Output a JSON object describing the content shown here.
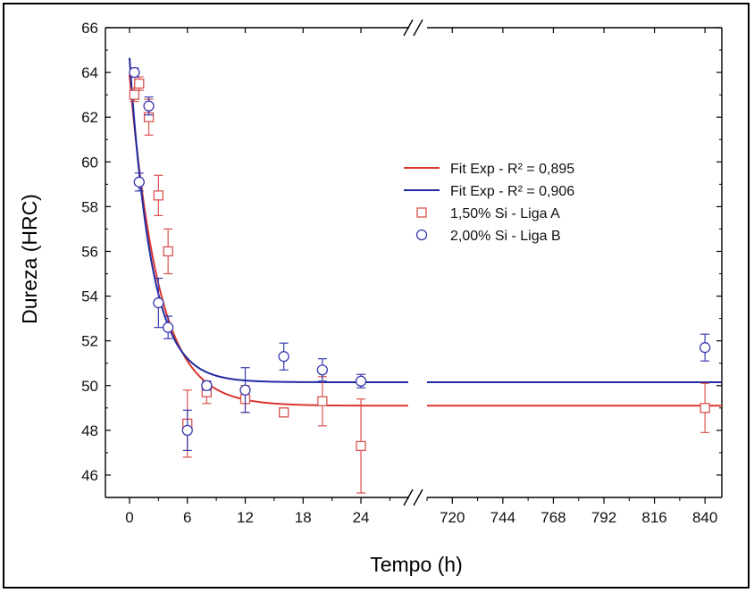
{
  "chart_data": {
    "type": "scatter",
    "xlabel": "Tempo (h)",
    "ylabel": "Dureza (HRC)",
    "ylim": [
      45,
      66
    ],
    "yticks": [
      46,
      48,
      50,
      52,
      54,
      56,
      58,
      60,
      62,
      64,
      66
    ],
    "x_segments": [
      {
        "range": [
          -2.5,
          29
        ],
        "ticks": [
          0,
          6,
          12,
          18,
          24
        ]
      },
      {
        "range": [
          708,
          848
        ],
        "ticks": [
          720,
          744,
          768,
          792,
          816,
          840
        ]
      }
    ],
    "axis_break": true,
    "legend_position": "center-right",
    "grid": false,
    "series": [
      {
        "name": "1,50% Si - Liga A",
        "marker": "square",
        "color": "#d9534f",
        "points": [
          {
            "x": 0.5,
            "y": 63.0,
            "err": 0.3
          },
          {
            "x": 1,
            "y": 63.5,
            "err": 0.3
          },
          {
            "x": 2,
            "y": 62.0,
            "err": 0.8
          },
          {
            "x": 3,
            "y": 58.5,
            "err": 0.9
          },
          {
            "x": 4,
            "y": 56.0,
            "err": 1.0
          },
          {
            "x": 6,
            "y": 48.3,
            "err": 1.5
          },
          {
            "x": 8,
            "y": 49.7,
            "err": 0.5
          },
          {
            "x": 12,
            "y": 49.4,
            "err": 0.6
          },
          {
            "x": 16,
            "y": 48.8,
            "err": 0.2
          },
          {
            "x": 20,
            "y": 49.3,
            "err": 1.1
          },
          {
            "x": 24,
            "y": 47.3,
            "err": 2.1
          },
          {
            "x": 840,
            "y": 49.0,
            "err": 1.1
          }
        ]
      },
      {
        "name": "2,00% Si - Liga B",
        "marker": "circle",
        "color": "#3a3ab0",
        "points": [
          {
            "x": 0.5,
            "y": 64.0,
            "err": 0.2
          },
          {
            "x": 1,
            "y": 59.1,
            "err": 0.4
          },
          {
            "x": 2,
            "y": 62.5,
            "err": 0.4
          },
          {
            "x": 3,
            "y": 53.7,
            "err": 1.1
          },
          {
            "x": 4,
            "y": 52.6,
            "err": 0.5
          },
          {
            "x": 6,
            "y": 48.0,
            "err": 0.9
          },
          {
            "x": 8,
            "y": 50.0,
            "err": 0.2
          },
          {
            "x": 12,
            "y": 49.8,
            "err": 1.0
          },
          {
            "x": 16,
            "y": 51.3,
            "err": 0.6
          },
          {
            "x": 20,
            "y": 50.7,
            "err": 0.5
          },
          {
            "x": 24,
            "y": 50.2,
            "err": 0.3
          },
          {
            "x": 840,
            "y": 51.7,
            "err": 0.6
          }
        ]
      }
    ],
    "fits": [
      {
        "name": "Fit Exp - R² = 0,895",
        "color": "#d9362f",
        "y0": 49.1,
        "A": 14.8,
        "tau": 3.0
      },
      {
        "name": "Fit Exp - R² = 0,906",
        "color": "#1f2aa0",
        "y0": 50.15,
        "A": 14.5,
        "tau": 2.3
      }
    ]
  }
}
